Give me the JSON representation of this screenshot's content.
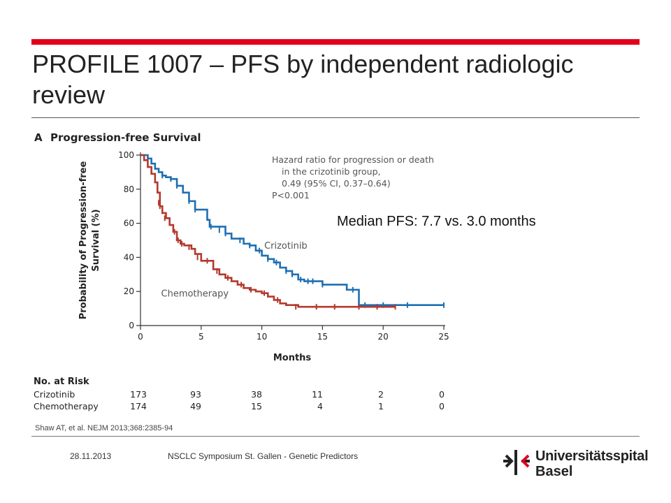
{
  "slide": {
    "title": "PROFILE 1007 – PFS by independent radiologic review",
    "median_note": "Median PFS: 7.7 vs. 3.0 months",
    "source": "Shaw AT, et al. NEJM 2013;368:2385-94",
    "footer_date": "28.11.2013",
    "footer_event": "NSCLC Symposium St. Gallen - Genetic Predictors",
    "logo_line1": "Universitätsspital",
    "logo_line2": "Basel",
    "accent_color": "#e2001a"
  },
  "chart_data": {
    "type": "line",
    "panel_letter": "A",
    "title": "Progression-free Survival",
    "xlabel": "Months",
    "ylabel_line1": "Probability of Progression-free",
    "ylabel_line2": "Survival (%)",
    "xlim": [
      0,
      25
    ],
    "ylim": [
      0,
      100
    ],
    "xticks": [
      0,
      5,
      10,
      15,
      20,
      25
    ],
    "yticks": [
      0,
      20,
      40,
      60,
      80,
      100
    ],
    "annotation_lines": [
      "Hazard ratio for progression or death",
      "in the crizotinib group,",
      "0.49 (95% CI, 0.37–0.64)",
      "P<0.001"
    ],
    "series": [
      {
        "name": "Crizotinib",
        "color": "#1f6fb2",
        "x": [
          0,
          0.6,
          0.9,
          1.2,
          1.5,
          1.8,
          2.1,
          2.5,
          3.0,
          3.5,
          4.0,
          4.5,
          5.0,
          5.5,
          5.7,
          6.0,
          7.0,
          7.5,
          8.0,
          8.5,
          9.0,
          9.5,
          10.0,
          10.5,
          11.0,
          11.5,
          12.0,
          12.5,
          13.0,
          13.5,
          14.0,
          15.0,
          16.0,
          17.0,
          18.0,
          20.0,
          25.0
        ],
        "y": [
          100,
          98,
          95,
          92,
          90,
          88,
          87,
          86,
          82,
          78,
          73,
          68,
          68,
          62,
          58,
          58,
          54,
          51,
          51,
          48,
          47,
          44,
          41,
          39,
          37,
          34,
          32,
          30,
          27,
          26,
          26,
          24,
          24,
          21,
          12,
          12,
          12
        ],
        "censor_x": [
          1.8,
          2.5,
          3.0,
          4.0,
          4.5,
          5.8,
          6.5,
          7.0,
          8.2,
          9.0,
          9.8,
          10.5,
          11.2,
          12.0,
          12.5,
          13.2,
          13.8,
          14.2,
          15.0,
          17.5,
          18.5,
          20.0,
          22.0,
          25.0
        ],
        "censor_y": [
          88,
          86,
          82,
          73,
          68,
          58,
          56,
          54,
          50,
          47,
          44,
          39,
          37,
          32,
          30,
          27,
          26,
          26,
          24,
          21,
          12,
          12,
          12,
          12
        ]
      },
      {
        "name": "Chemotherapy",
        "color": "#b23a2e",
        "x": [
          0,
          0.3,
          0.6,
          0.9,
          1.2,
          1.4,
          1.6,
          1.8,
          2.1,
          2.4,
          2.7,
          3.0,
          3.3,
          3.6,
          4.2,
          4.5,
          5.0,
          5.3,
          6.0,
          6.5,
          7.0,
          7.5,
          8.0,
          8.5,
          9.0,
          9.5,
          10.0,
          10.5,
          11.0,
          11.5,
          12.0,
          12.5,
          13.0,
          14.0,
          15.0,
          16.0,
          18.0,
          20.0,
          21.0
        ],
        "y": [
          100,
          97,
          93,
          89,
          84,
          78,
          70,
          66,
          63,
          59,
          55,
          50,
          48,
          47,
          45,
          42,
          38,
          38,
          33,
          30,
          28,
          26,
          24,
          22,
          21,
          20,
          19,
          17,
          15,
          13,
          12,
          12,
          11,
          11,
          11,
          11,
          11,
          11,
          11
        ],
        "censor_x": [
          1.5,
          1.6,
          2.0,
          2.8,
          3.1,
          3.4,
          4.0,
          4.7,
          5.5,
          6.3,
          7.2,
          8.3,
          9.1,
          10.2,
          11.3,
          12.8,
          14.5,
          16.0,
          18.0,
          19.5,
          21.0
        ],
        "censor_y": [
          72,
          70,
          63,
          55,
          50,
          48,
          46,
          40,
          38,
          32,
          28,
          24,
          21,
          19,
          15,
          11,
          11,
          11,
          11,
          11,
          11
        ]
      }
    ],
    "series_labels": [
      {
        "text": "Crizotinib",
        "x": 10.2,
        "y": 45
      },
      {
        "text": "Chemotherapy",
        "x": 1.7,
        "y": 17
      }
    ],
    "risk_table": {
      "title": "No. at Risk",
      "rows": [
        {
          "label": "Crizotinib",
          "values": [
            "173",
            "93",
            "38",
            "11",
            "2",
            "0"
          ]
        },
        {
          "label": "Chemotherapy",
          "values": [
            "174",
            "49",
            "15",
            "4",
            "1",
            "0"
          ]
        }
      ]
    }
  }
}
